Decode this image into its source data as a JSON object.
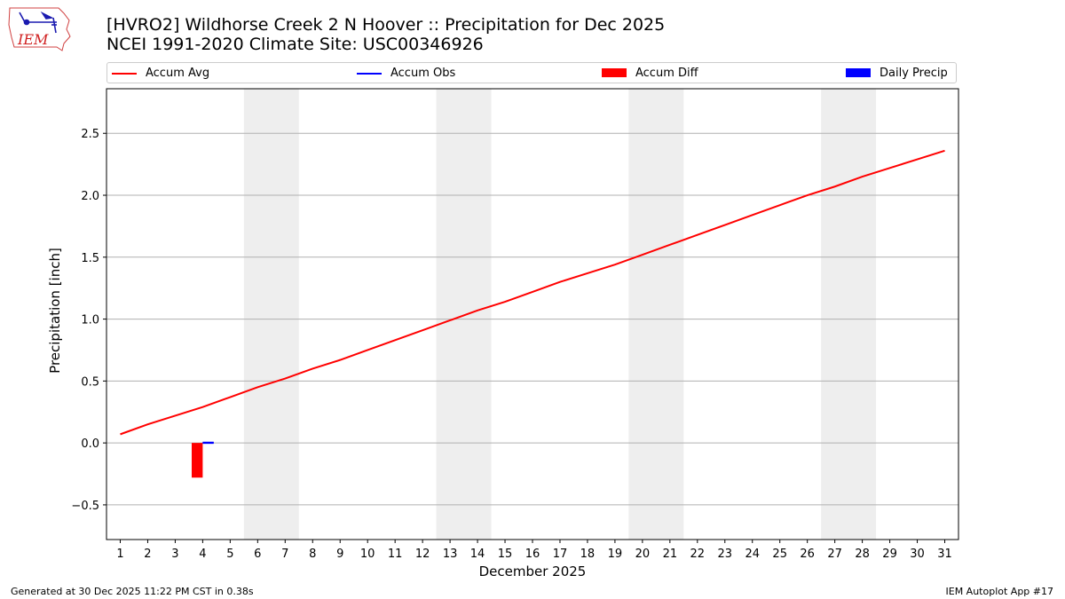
{
  "header": {
    "title_line1": "[HVRO2] Wildhorse Creek 2 N Hoover :: Precipitation for Dec 2025",
    "title_line2": "NCEI 1991-2020 Climate Site: USC00346926"
  },
  "logo": {
    "text": "IEM",
    "icon": "iem-iowa-state-logo"
  },
  "footer": {
    "left": "Generated at 30 Dec 2025 11:22 PM CST in 0.38s",
    "right": "IEM Autoplot App #17"
  },
  "chart_data": {
    "type": "line",
    "title": "[HVRO2] Wildhorse Creek 2 N Hoover :: Precipitation for Dec 2025",
    "subtitle": "NCEI 1991-2020 Climate Site: USC00346926",
    "xlabel": "December 2025",
    "ylabel": "Precipitation [inch]",
    "xlim": [
      0.5,
      31.5
    ],
    "ylim": [
      -0.78,
      2.86
    ],
    "x_ticks": [
      1,
      2,
      3,
      4,
      5,
      6,
      7,
      8,
      9,
      10,
      11,
      12,
      13,
      14,
      15,
      16,
      17,
      18,
      19,
      20,
      21,
      22,
      23,
      24,
      25,
      26,
      27,
      28,
      29,
      30,
      31
    ],
    "y_ticks": [
      -0.5,
      0.0,
      0.5,
      1.0,
      1.5,
      2.0,
      2.5
    ],
    "y_tick_labels": [
      "−0.5",
      "0.0",
      "0.5",
      "1.0",
      "1.5",
      "2.0",
      "2.5"
    ],
    "grid": "y",
    "legend_position": "top",
    "weekend_bands": [
      [
        5.5,
        7.5
      ],
      [
        12.5,
        14.5
      ],
      [
        19.5,
        21.5
      ],
      [
        26.5,
        28.5
      ]
    ],
    "series": [
      {
        "name": "Accum Avg",
        "kind": "line",
        "color": "#ff0000",
        "x": [
          1,
          2,
          3,
          4,
          5,
          6,
          7,
          8,
          9,
          10,
          11,
          12,
          13,
          14,
          15,
          16,
          17,
          18,
          19,
          20,
          21,
          22,
          23,
          24,
          25,
          26,
          27,
          28,
          29,
          30,
          31
        ],
        "values": [
          0.07,
          0.15,
          0.22,
          0.29,
          0.37,
          0.45,
          0.52,
          0.6,
          0.67,
          0.75,
          0.83,
          0.91,
          0.99,
          1.07,
          1.14,
          1.22,
          1.3,
          1.37,
          1.44,
          1.52,
          1.6,
          1.68,
          1.76,
          1.84,
          1.92,
          2.0,
          2.07,
          2.15,
          2.22,
          2.29,
          2.36
        ]
      },
      {
        "name": "Accum Obs",
        "kind": "line",
        "color": "#0000ff",
        "x": [
          4
        ],
        "values": [
          0.0
        ]
      },
      {
        "name": "Accum Diff",
        "kind": "bar",
        "color": "#ff0000",
        "x": [
          4
        ],
        "values": [
          -0.28
        ]
      },
      {
        "name": "Daily Precip",
        "kind": "bar",
        "color": "#0000ff",
        "x": [
          4
        ],
        "values": [
          0.01
        ]
      }
    ]
  }
}
